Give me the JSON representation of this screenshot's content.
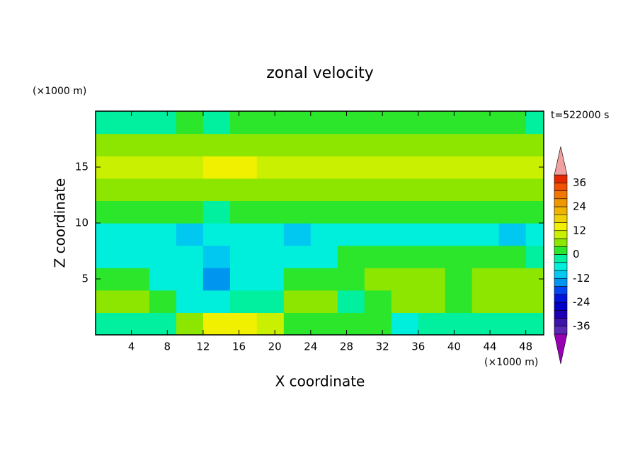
{
  "chart_data": {
    "type": "contour",
    "title": "zonal velocity",
    "time_label": "t=522000 s",
    "x_label": "X coordinate",
    "y_label": "Z coordinate",
    "x_unit": "(×1000 m)",
    "y_unit": "(×1000 m)",
    "xlim": [
      0,
      50
    ],
    "ylim": [
      0,
      20
    ],
    "xticks": [
      4,
      8,
      12,
      16,
      20,
      24,
      28,
      32,
      36,
      40,
      44,
      48
    ],
    "yticks": [
      5,
      10,
      15
    ],
    "x": [
      1.5,
      4.5,
      7.5,
      10.5,
      13.5,
      16.5,
      19.5,
      22.5,
      25.5,
      28.5,
      31.5,
      34.5,
      37.5,
      40.5,
      43.5,
      46.5,
      49.5
    ],
    "z": [
      1,
      3,
      5,
      7,
      9,
      11,
      13,
      15,
      17,
      19
    ],
    "values": [
      [
        -2,
        -2,
        -2,
        6,
        14,
        14,
        10,
        2,
        2,
        2,
        2,
        -6,
        -2,
        -2,
        -2,
        -2,
        -2
      ],
      [
        6,
        6,
        2,
        -6,
        -6,
        -2,
        -2,
        6,
        6,
        -2,
        2,
        6,
        6,
        2,
        6,
        6,
        6
      ],
      [
        2,
        2,
        -6,
        -6,
        -14,
        -6,
        -6,
        2,
        2,
        2,
        6,
        6,
        6,
        2,
        6,
        6,
        6
      ],
      [
        -6,
        -6,
        -6,
        -6,
        -10,
        -6,
        -6,
        -6,
        -6,
        2,
        2,
        2,
        2,
        2,
        2,
        2,
        -2
      ],
      [
        -6,
        -6,
        -6,
        -10,
        -6,
        -6,
        -6,
        -10,
        -6,
        -6,
        -6,
        -6,
        -6,
        -6,
        -6,
        -10,
        -6
      ],
      [
        2,
        2,
        2,
        2,
        -2,
        2,
        2,
        2,
        2,
        2,
        2,
        2,
        2,
        2,
        2,
        2,
        2
      ],
      [
        6,
        6,
        6,
        6,
        6,
        6,
        6,
        6,
        6,
        6,
        6,
        6,
        6,
        6,
        6,
        6,
        6
      ],
      [
        10,
        10,
        10,
        10,
        14,
        14,
        10,
        10,
        10,
        10,
        10,
        10,
        10,
        10,
        10,
        10,
        10
      ],
      [
        6,
        6,
        6,
        6,
        6,
        6,
        6,
        6,
        6,
        6,
        6,
        6,
        6,
        6,
        6,
        6,
        6
      ],
      [
        -2,
        -2,
        -2,
        2,
        -2,
        2,
        2,
        2,
        2,
        2,
        2,
        2,
        2,
        2,
        2,
        2,
        -2
      ]
    ],
    "colorbar": {
      "levels": [
        -40,
        -36,
        -32,
        -28,
        -24,
        -20,
        -16,
        -12,
        -8,
        -4,
        0,
        4,
        8,
        12,
        16,
        20,
        24,
        28,
        32,
        36,
        40
      ],
      "colors": [
        "#9800b4",
        "#5a28b4",
        "#3c14aa",
        "#1e00b4",
        "#0000c8",
        "#0014dc",
        "#0046f0",
        "#0096f0",
        "#00c8f0",
        "#00eedc",
        "#00f0a0",
        "#2ce62c",
        "#8ce600",
        "#c8f000",
        "#f0f000",
        "#f0d200",
        "#f0b400",
        "#f09600",
        "#f07800",
        "#f05000",
        "#e62800",
        "#f0a0a0"
      ],
      "ticks": [
        -36,
        -24,
        -12,
        0,
        12,
        24,
        36
      ]
    }
  }
}
